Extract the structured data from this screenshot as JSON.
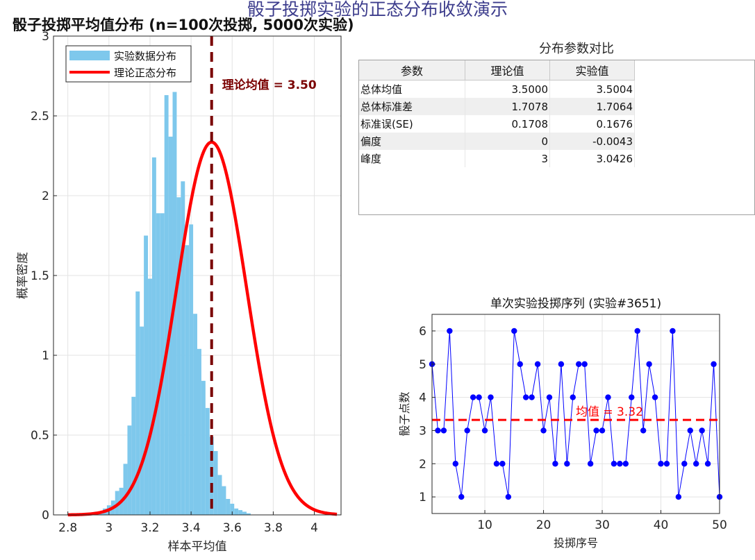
{
  "suptitle": "骰子投掷实验的正态分布收敛演示",
  "table_panel": {
    "title": "分布参数对比",
    "columns": [
      "参数",
      "理论值",
      "实验值"
    ],
    "rows": [
      {
        "name": "总体均值",
        "theory": "3.5000",
        "experiment": "3.5004"
      },
      {
        "name": "总体标准差",
        "theory": "1.7078",
        "experiment": "1.7064"
      },
      {
        "name": "标准误(SE)",
        "theory": "0.1708",
        "experiment": "0.1676"
      },
      {
        "name": "偏度",
        "theory": "0",
        "experiment": "-0.0043"
      },
      {
        "name": "峰度",
        "theory": "3",
        "experiment": "3.0426"
      }
    ]
  },
  "chart_data": [
    {
      "type": "bar",
      "title": "骰子投掷平均值分布 (n=100次投掷, 5000次实验)",
      "xlabel": "样本平均值",
      "ylabel": "概率密度",
      "xlim": [
        2.73,
        4.13
      ],
      "ylim": [
        0,
        3
      ],
      "xticks": [
        "2.8",
        "3",
        "3.2",
        "3.4",
        "3.6",
        "3.8",
        "4"
      ],
      "yticks": [
        "0",
        "0.5",
        "1",
        "1.5",
        "2",
        "2.5",
        "3"
      ],
      "grid": true,
      "legend_position": "top-left",
      "legend": [
        "实验数据分布",
        "理论正态分布"
      ],
      "bin_width": 0.02,
      "bins_start": 2.93,
      "values": [
        0.02,
        0.02,
        0.04,
        0.06,
        0.09,
        0.15,
        0.17,
        0.32,
        0.56,
        0.74,
        1.4,
        1.18,
        1.75,
        1.48,
        2.24,
        1.89,
        1.89,
        2.63,
        2.37,
        2.65,
        1.99,
        2.09,
        1.69,
        1.82,
        1.26,
        1.04,
        0.84,
        0.67,
        0.49,
        0.4,
        0.25,
        0.18,
        0.1,
        0.07,
        0.04,
        0.03,
        0.02,
        0.01
      ],
      "normal_curve": {
        "name": "理论正态分布",
        "mean": 3.5,
        "sd": 0.1708,
        "x_range": [
          2.8,
          4.11
        ]
      },
      "mean_line": {
        "x": 3.5,
        "label": "理论均值 = 3.50"
      },
      "colors": {
        "bars": "#7ec8ec",
        "curve": "#ff0000",
        "mean_line": "#7a0000",
        "annotation": "#7a0000"
      }
    },
    {
      "type": "line",
      "title": "单次实验投掷序列 (实验#3651)",
      "xlabel": "投掷序号",
      "ylabel": "骰子点数",
      "xlim": [
        1,
        50
      ],
      "ylim": [
        0.5,
        6.5
      ],
      "xticks": [
        "10",
        "20",
        "30",
        "40",
        "50"
      ],
      "yticks": [
        "1",
        "2",
        "3",
        "4",
        "5",
        "6"
      ],
      "grid": true,
      "x": [
        1,
        2,
        3,
        4,
        5,
        6,
        7,
        8,
        9,
        10,
        11,
        12,
        13,
        14,
        15,
        16,
        17,
        18,
        19,
        20,
        21,
        22,
        23,
        24,
        25,
        26,
        27,
        28,
        29,
        30,
        31,
        32,
        33,
        34,
        35,
        36,
        37,
        38,
        39,
        40,
        41,
        42,
        43,
        44,
        45,
        46,
        47,
        48,
        49,
        50
      ],
      "y": [
        5,
        3,
        3,
        6,
        2,
        1,
        3,
        4,
        4,
        3,
        4,
        2,
        2,
        1,
        6,
        5,
        4,
        4,
        5,
        3,
        4,
        2,
        5,
        2,
        4,
        5,
        5,
        2,
        3,
        3,
        4,
        2,
        2,
        2,
        4,
        6,
        3,
        5,
        4,
        2,
        2,
        6,
        1,
        2,
        3,
        2,
        3,
        2,
        5,
        1
      ],
      "mean_line": {
        "y": 3.32,
        "label": "均值 = 3.32"
      },
      "colors": {
        "line": "#0000ff",
        "mean_line": "#ff0000"
      }
    }
  ]
}
